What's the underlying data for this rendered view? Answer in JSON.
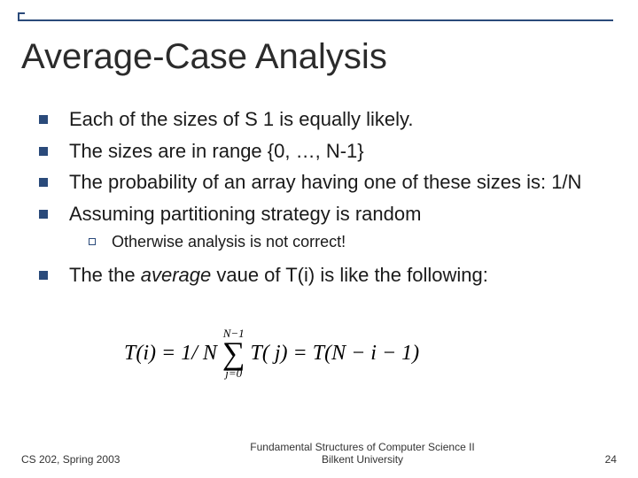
{
  "slide": {
    "title": "Average-Case Analysis",
    "bullets": [
      "Each of the sizes of S 1 is equally likely.",
      "The sizes are in range {0, …, N-1}",
      "The probability of an array having one of these sizes is: 1/N",
      "Assuming partitioning strategy is random"
    ],
    "sub_bullet": "Otherwise analysis is not correct!",
    "last_bullet_pre": "The the ",
    "last_bullet_italic": "average",
    "last_bullet_post": " vaue of T(i) is like the following:",
    "formula": {
      "lhs": "T(i) = 1/ N",
      "sum_upper": "N−1",
      "sum_lower": "j=0",
      "mid": "T( j) = T(N − i − 1)",
      "sigma": "∑"
    }
  },
  "footer": {
    "left": "CS 202, Spring 2003",
    "center_line1": "Fundamental Structures of Computer Science II",
    "center_line2": "Bilkent University",
    "page": "24"
  },
  "colors": {
    "accent": "#2a4a7a",
    "text": "#1a1a1a",
    "bg": "#ffffff"
  }
}
